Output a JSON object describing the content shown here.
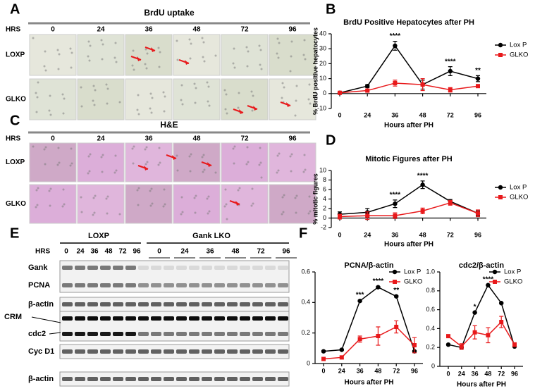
{
  "panel_labels": [
    "A",
    "B",
    "C",
    "D",
    "E",
    "F"
  ],
  "brdu_images": {
    "title": "BrdU uptake",
    "hrs_label": "HRS",
    "hours": [
      "0",
      "24",
      "36",
      "48",
      "72",
      "96"
    ],
    "rows": [
      "LOXP",
      "GLKO"
    ]
  },
  "he_images": {
    "title": "H&E",
    "hrs_label": "HRS",
    "hours": [
      "0",
      "24",
      "36",
      "48",
      "72",
      "96"
    ],
    "rows": [
      "LOXP",
      "GLKO"
    ]
  },
  "western_blot": {
    "groups": [
      "LOXP",
      "Gank LKO"
    ],
    "hrs_label": "HRS",
    "loxp_hours": [
      "0",
      "24",
      "36",
      "48",
      "72",
      "96"
    ],
    "lko_hours": [
      "0",
      "24",
      "36",
      "48",
      "72",
      "96"
    ],
    "rows": [
      "Gank",
      "PCNA",
      "β-actin",
      "CRM",
      "cdc2",
      "Cyc D1",
      "β-actin"
    ]
  },
  "chart_data": [
    {
      "type": "line",
      "title": "BrdU Positive Hepatocytes after PH",
      "x_label": "Hours after PH",
      "y_label": "% BrdU positive hepatocytes",
      "categories": [
        "0",
        "24",
        "36",
        "48",
        "72",
        "96"
      ],
      "ylim": [
        -10,
        40
      ],
      "yticks": [
        -10,
        0,
        10,
        20,
        30,
        40
      ],
      "legend": "upper right",
      "series": [
        {
          "name": "Lox P",
          "color": "#000000",
          "marker": "circle",
          "values": [
            0.5,
            5,
            32,
            6,
            15,
            10
          ],
          "errors": [
            0.5,
            1,
            3,
            3,
            3,
            2
          ]
        },
        {
          "name": "GLKO",
          "color": "#e8191b",
          "marker": "square",
          "values": [
            0.5,
            2,
            7,
            6,
            2.5,
            5
          ],
          "errors": [
            0.5,
            0.5,
            2,
            4,
            1.5,
            1
          ]
        }
      ],
      "annotations": [
        {
          "text": "****",
          "category": "36"
        },
        {
          "text": "****",
          "category": "72"
        },
        {
          "text": "**",
          "category": "96"
        }
      ]
    },
    {
      "type": "line",
      "title": "Mitotic Figures after PH",
      "x_label": "Hours after PH",
      "y_label": "% mitotic figures",
      "categories": [
        "0",
        "24",
        "36",
        "48",
        "72",
        "96"
      ],
      "ylim": [
        -2,
        10
      ],
      "yticks": [
        -2,
        0,
        2,
        4,
        6,
        8,
        10
      ],
      "legend": "upper right",
      "series": [
        {
          "name": "Lox P",
          "color": "#000000",
          "marker": "circle",
          "values": [
            0.8,
            1.2,
            3,
            7,
            3.5,
            1
          ],
          "errors": [
            0.5,
            0.8,
            0.8,
            0.8,
            0.4,
            0.5
          ]
        },
        {
          "name": "GLKO",
          "color": "#e8191b",
          "marker": "square",
          "values": [
            0.3,
            0.5,
            0.5,
            1.5,
            3.2,
            1
          ],
          "errors": [
            0.5,
            0.8,
            0.6,
            0.6,
            0.5,
            0.7
          ]
        }
      ],
      "annotations": [
        {
          "text": "****",
          "category": "36"
        },
        {
          "text": "****",
          "category": "48"
        }
      ]
    },
    {
      "type": "line",
      "title": "PCNA/β-actin",
      "x_label": "Hours after PH",
      "categories": [
        "0",
        "24",
        "36",
        "48",
        "72",
        "96"
      ],
      "ylim": [
        0,
        0.6
      ],
      "yticks": [
        0,
        0.2,
        0.4,
        0.6
      ],
      "legend": "upper right",
      "series": [
        {
          "name": "Lox P",
          "color": "#000000",
          "marker": "circle",
          "values": [
            0.08,
            0.09,
            0.41,
            0.5,
            0.44,
            0.08
          ],
          "errors": [
            0.005,
            0.005,
            0.005,
            0.005,
            0.005,
            0.005
          ]
        },
        {
          "name": "GLKO",
          "color": "#e8191b",
          "marker": "square",
          "values": [
            0.03,
            0.04,
            0.16,
            0.18,
            0.24,
            0.12
          ],
          "errors": [
            0.01,
            0.01,
            0.02,
            0.06,
            0.04,
            0.05
          ]
        }
      ],
      "annotations": [
        {
          "text": "***",
          "category": "36"
        },
        {
          "text": "****",
          "category": "48"
        },
        {
          "text": "**",
          "category": "72"
        }
      ]
    },
    {
      "type": "line",
      "title": "cdc2/β-actin",
      "x_label": "Hours after PH",
      "categories": [
        "0",
        "24",
        "36",
        "48",
        "72",
        "96"
      ],
      "ylim": [
        0,
        1
      ],
      "yticks": [
        0,
        0.2,
        0.4,
        0.6,
        0.8,
        {
          "value": 1,
          "label": "1.0"
        }
      ],
      "legend": "upper right",
      "series": [
        {
          "name": "Lox P",
          "color": "#000000",
          "marker": "circle",
          "values": [
            0.23,
            0.2,
            0.57,
            0.86,
            0.67,
            0.21
          ],
          "errors": [
            0.005,
            0.005,
            0.005,
            0.005,
            0.005,
            0.005
          ]
        },
        {
          "name": "GLKO",
          "color": "#e8191b",
          "marker": "square",
          "values": [
            0.32,
            0.21,
            0.36,
            0.33,
            0.47,
            0.23
          ],
          "errors": [
            0.01,
            0.03,
            0.07,
            0.08,
            0.06,
            0.02
          ]
        }
      ],
      "annotations": [
        {
          "text": "*",
          "category": "36"
        },
        {
          "text": "****",
          "category": "48"
        }
      ]
    }
  ]
}
